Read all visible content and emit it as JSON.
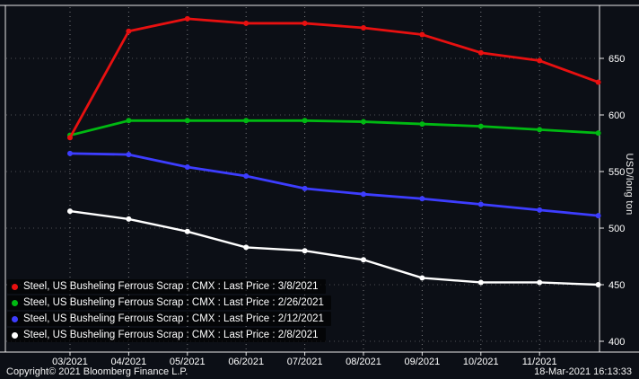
{
  "chart_data": {
    "type": "line",
    "title": "",
    "xlabel": "",
    "ylabel": "USD/long ton",
    "x": [
      "03/2021",
      "04/2021",
      "05/2021",
      "06/2021",
      "07/2021",
      "08/2021",
      "09/2021",
      "10/2021",
      "11/2021",
      ""
    ],
    "ylim": [
      400,
      650
    ],
    "yticks": [
      400,
      450,
      500,
      550,
      600,
      650
    ],
    "grid": "dotted",
    "legend_position": "bottom-left",
    "series": [
      {
        "name": "Steel, US Busheling Ferrous Scrap : CMX : Last Price : 3/8/2021",
        "color": "#e81010",
        "values": [
          580,
          674,
          685,
          681,
          681,
          677,
          671,
          655,
          648,
          629
        ]
      },
      {
        "name": "Steel, US Busheling Ferrous Scrap : CMX : Last Price : 2/26/2021",
        "color": "#00b912",
        "values": [
          582,
          595,
          595,
          595,
          595,
          594,
          592,
          590,
          587,
          584
        ]
      },
      {
        "name": "Steel, US Busheling Ferrous Scrap : CMX : Last Price : 2/12/2021",
        "color": "#3d3dff",
        "values": [
          566,
          565,
          554,
          546,
          535,
          530,
          526,
          521,
          516,
          511
        ]
      },
      {
        "name": "Steel, US Busheling Ferrous Scrap : CMX : Last Price : 2/8/2021",
        "color": "#ffffff",
        "values": [
          515,
          508,
          497,
          483,
          480,
          472,
          456,
          452,
          452,
          450
        ]
      }
    ]
  },
  "footer": {
    "copyright": "Copyright© 2021 Bloomberg Finance L.P.",
    "timestamp": "18-Mar-2021 16:13:33"
  },
  "colors": {
    "background": "#0c0f16",
    "frame": "#ffffff",
    "tick_text": "#ffffff"
  }
}
